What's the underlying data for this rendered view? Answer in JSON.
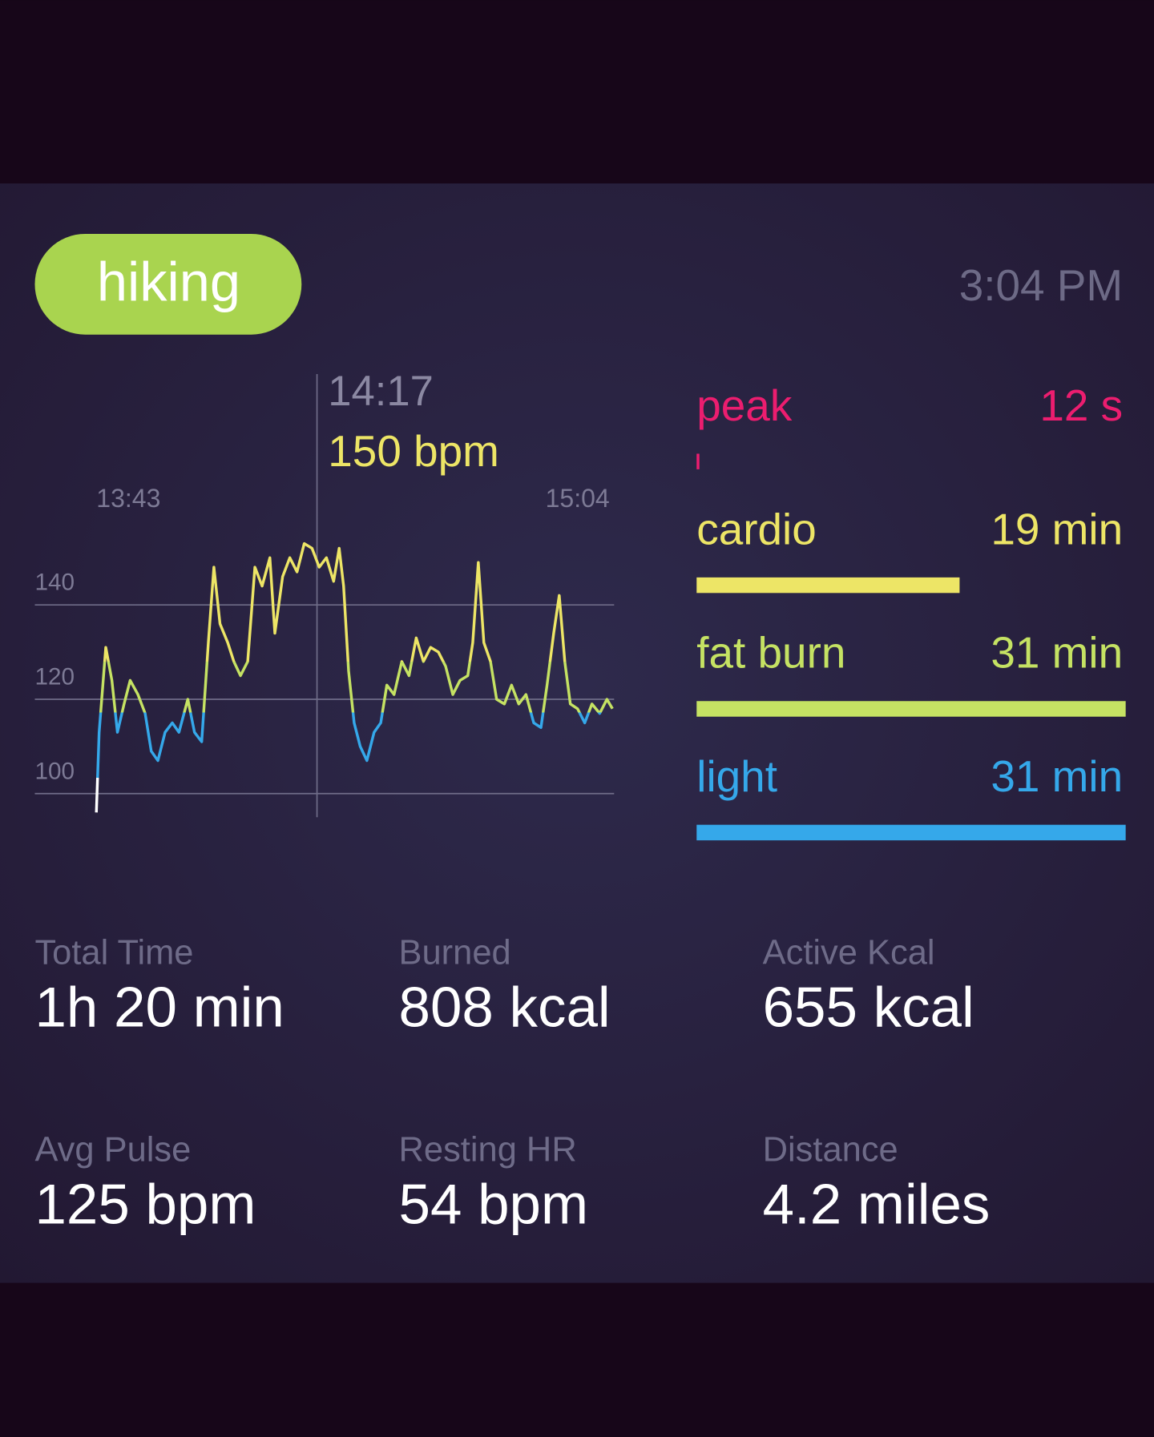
{
  "header": {
    "activity": "hiking",
    "time": "3:04 PM"
  },
  "chart_data": {
    "type": "line",
    "x": [
      817.2,
      817.7,
      818.9,
      820.0,
      821.0,
      822.2,
      823.3,
      824.7,
      826.0,
      827.1,
      828.3,
      829.6,
      830.9,
      832.1,
      833.7,
      834.9,
      836.2,
      837.4,
      838.4,
      839.5,
      840.9,
      842.0,
      843.2,
      844.5,
      845.8,
      847.1,
      848.5,
      849.4,
      850.8,
      852.1,
      853.4,
      854.7,
      856.1,
      857.4,
      858.7,
      860.0,
      861.0,
      861.8,
      862.7,
      863.7,
      864.8,
      866.0,
      867.3,
      868.5,
      869.6,
      870.9,
      872.3,
      873.6,
      874.9,
      876.2,
      877.5,
      878.9,
      880.2,
      881.5,
      882.8,
      884.2,
      885.1,
      886.1,
      887.1,
      888.3,
      889.4,
      890.8,
      892.1,
      893.4,
      894.7,
      896.1,
      897.4,
      898.5,
      899.7,
      900.7,
      901.7,
      902.7,
      904.0,
      905.3,
      906.6,
      908.0,
      909.3,
      910.3
    ],
    "values": [
      96,
      113,
      131,
      124,
      113,
      119,
      124,
      121,
      117,
      109,
      107,
      113,
      115,
      113,
      120,
      113,
      111,
      132,
      148,
      136,
      132,
      128,
      125,
      128,
      148,
      144,
      150,
      134,
      146,
      150,
      147,
      153,
      152,
      148,
      150,
      145,
      152,
      144,
      126,
      115,
      110,
      107,
      113,
      115,
      123,
      121,
      128,
      125,
      133,
      128,
      131,
      130,
      127,
      121,
      124,
      125,
      132,
      149,
      132,
      128,
      120,
      119,
      123,
      119,
      121,
      115,
      114,
      123,
      134,
      142,
      128,
      119,
      118,
      115,
      119,
      117,
      120,
      118
    ],
    "xlim": [
      806.1,
      910.6
    ],
    "xticks": [
      {
        "value": 823,
        "label": "13:43"
      },
      {
        "value": 904,
        "label": "15:04"
      }
    ],
    "ylim": [
      95,
      155
    ],
    "yticks": [
      100,
      120,
      140
    ],
    "grid": true,
    "cursor": {
      "x": 857,
      "label": "14:17",
      "reading": "150 bpm"
    }
  },
  "zones": [
    {
      "name": "peak",
      "label": "12 s",
      "minutes": 0.2,
      "color": "#ec1d6f"
    },
    {
      "name": "cardio",
      "label": "19 min",
      "minutes": 19,
      "color": "#ede566"
    },
    {
      "name": "fat burn",
      "label": "31 min",
      "minutes": 31,
      "color": "#c5e263"
    },
    {
      "name": "light",
      "label": "31 min",
      "minutes": 31,
      "color": "#35a8ea"
    }
  ],
  "stats": [
    {
      "label": "Total Time",
      "value": "1h 20 min"
    },
    {
      "label": "Burned",
      "value": "808 kcal"
    },
    {
      "label": "Active Kcal",
      "value": "655 kcal"
    },
    {
      "label": "Avg Pulse",
      "value": "125 bpm"
    },
    {
      "label": "Resting HR",
      "value": "54 bpm"
    },
    {
      "label": "Distance",
      "value": "4.2 miles"
    }
  ]
}
